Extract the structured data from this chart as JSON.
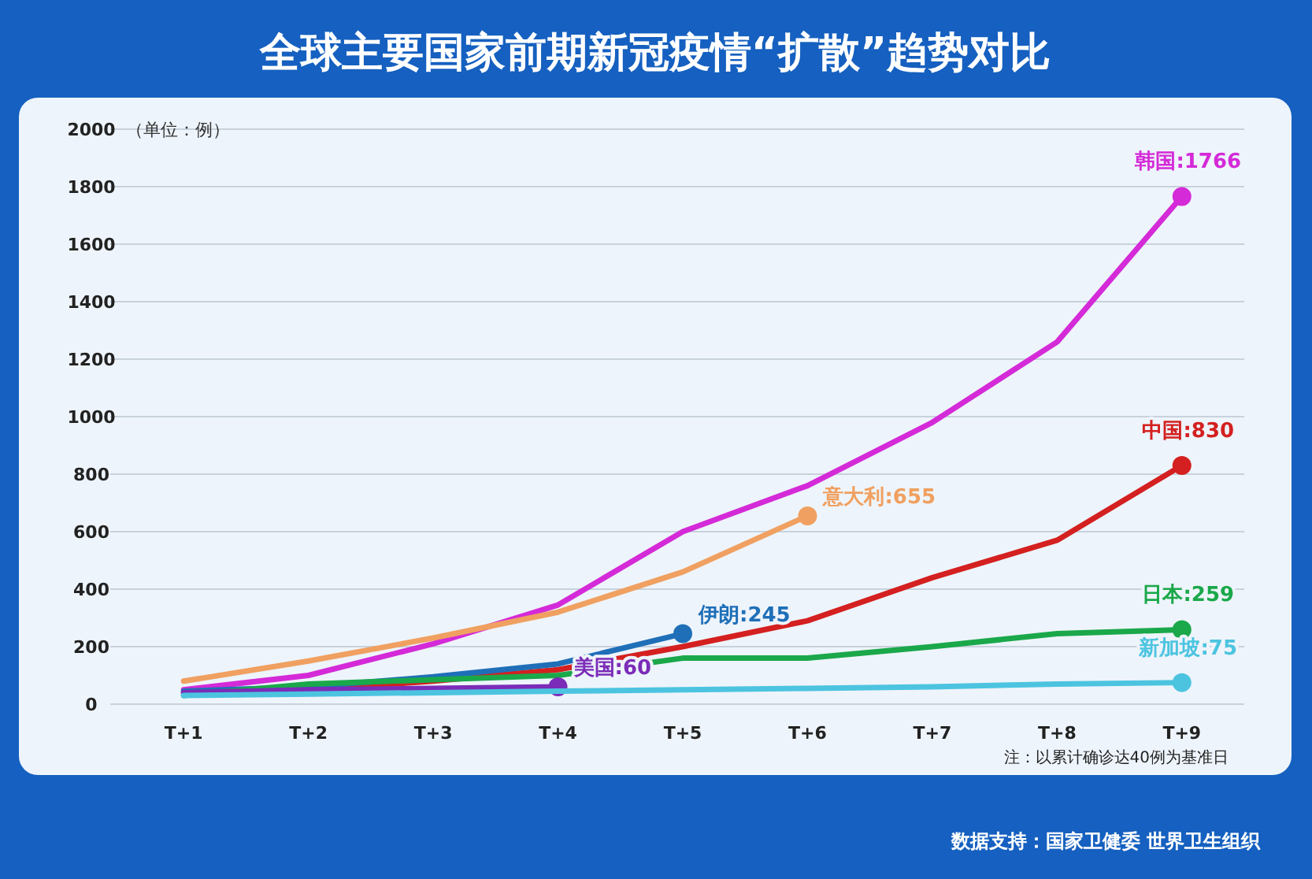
{
  "chart_data": {
    "type": "line",
    "title": "全球主要国家前期新冠疫情“扩散”趋势对比",
    "ylabel": "（单位：例）",
    "categories": [
      "T+1",
      "T+2",
      "T+3",
      "T+4",
      "T+5",
      "T+6",
      "T+7",
      "T+8",
      "T+9"
    ],
    "ylim": [
      0,
      2000
    ],
    "yticks": [
      0,
      200,
      400,
      600,
      800,
      1000,
      1200,
      1400,
      1600,
      1800,
      2000
    ],
    "grid": "y",
    "series": [
      {
        "name": "韩国",
        "color": "#d42ad8",
        "values": [
          50,
          100,
          210,
          345,
          600,
          760,
          980,
          1260,
          1766
        ],
        "value_labels": [
          null,
          null,
          null,
          null,
          null,
          null,
          null,
          null,
          ":1766"
        ]
      },
      {
        "name": "意大利",
        "color": "#f0a060",
        "values": [
          80,
          150,
          230,
          320,
          460,
          655,
          null,
          null,
          null
        ],
        "value_labels": [
          null,
          null,
          null,
          null,
          null,
          ":655",
          null,
          null,
          null
        ]
      },
      {
        "name": "中国",
        "color": "#d42020",
        "values": [
          40,
          50,
          80,
          120,
          200,
          290,
          440,
          570,
          830
        ],
        "value_labels": [
          null,
          null,
          null,
          null,
          null,
          null,
          null,
          null,
          ":830"
        ]
      },
      {
        "name": "伊朗",
        "color": "#1f6fb8",
        "values": [
          45,
          60,
          95,
          140,
          245,
          null,
          null,
          null,
          null
        ],
        "value_labels": [
          null,
          null,
          null,
          null,
          ":245",
          null,
          null,
          null,
          null
        ]
      },
      {
        "name": "日本",
        "color": "#1aa84a",
        "values": [
          30,
          70,
          85,
          100,
          160,
          160,
          200,
          245,
          259
        ],
        "value_labels": [
          null,
          null,
          null,
          null,
          null,
          null,
          null,
          null,
          ":259"
        ]
      },
      {
        "name": "美国",
        "color": "#7b2cb8",
        "values": [
          40,
          50,
          55,
          60,
          null,
          null,
          null,
          null,
          null
        ],
        "value_labels": [
          null,
          null,
          null,
          ":60",
          null,
          null,
          null,
          null,
          null
        ]
      },
      {
        "name": "新加坡",
        "color": "#4cc4e0",
        "values": [
          30,
          35,
          40,
          45,
          50,
          55,
          60,
          70,
          75
        ],
        "value_labels": [
          null,
          null,
          null,
          null,
          null,
          null,
          null,
          null,
          ":75"
        ]
      }
    ],
    "annotations": [
      "注：以累计确诊达40例为基准日",
      "数据支持：国家卫健委 世界卫生组织"
    ]
  }
}
